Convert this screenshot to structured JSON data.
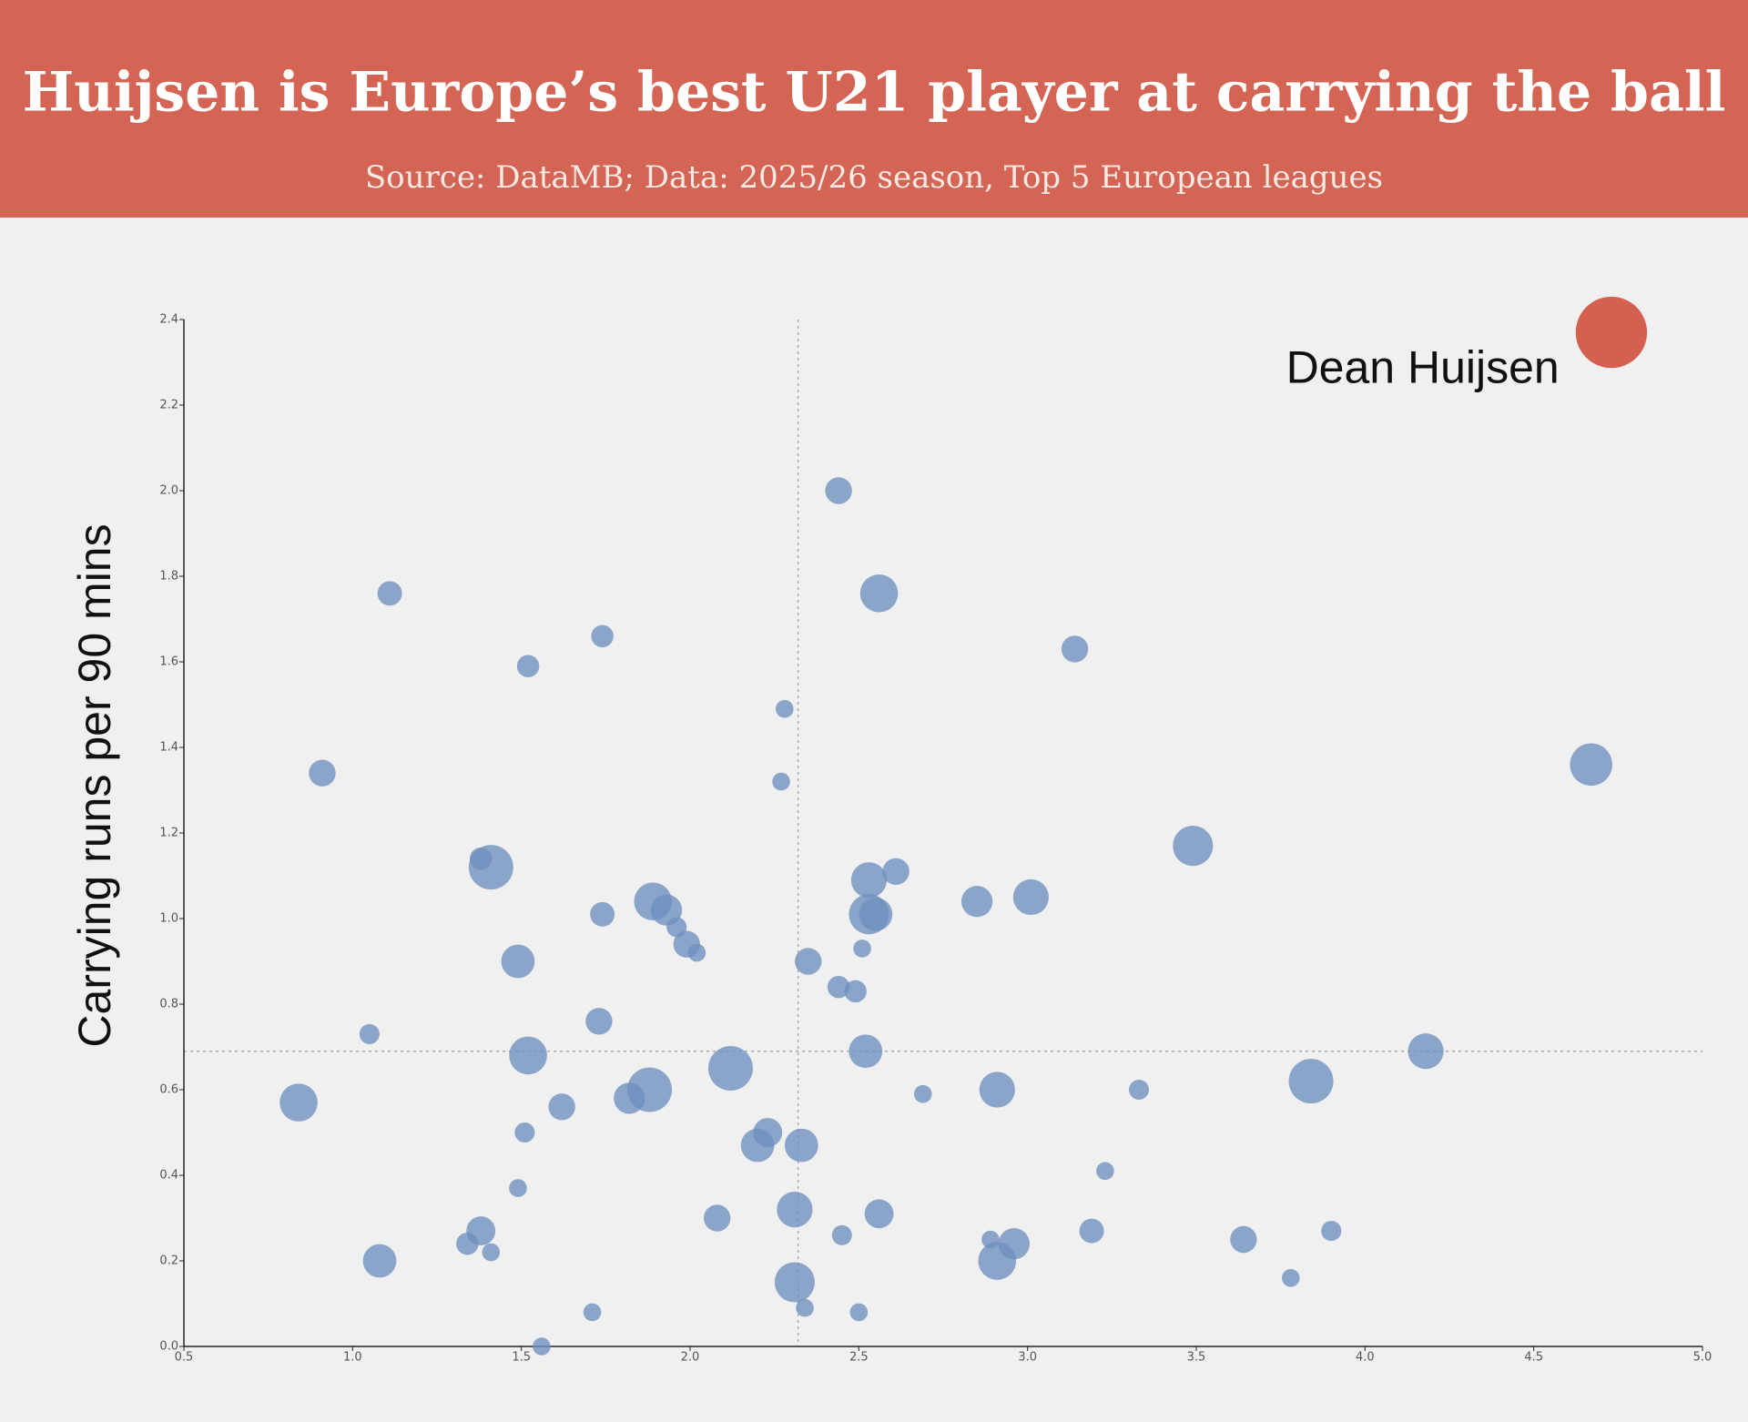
{
  "chart_data": {
    "type": "scatter",
    "title": "Huijsen is Europe’s best U21 player at carrying the ball",
    "subtitle": "Source: DataMB; Data: 2025/26 season, Top 5 European leagues",
    "y_label": "Carrying runs per 90 mins",
    "xlim": [
      0.5,
      5.0
    ],
    "ylim": [
      0.0,
      2.4
    ],
    "xticks": [
      {
        "value": 0.5,
        "label": "0.5"
      },
      {
        "value": 1,
        "label": "1.0"
      },
      {
        "value": 1.5,
        "label": "1.5"
      },
      {
        "value": 2,
        "label": "2.0"
      },
      {
        "value": 2.5,
        "label": "2.5"
      },
      {
        "value": 3,
        "label": "3.0"
      },
      {
        "value": 3.5,
        "label": "3.5"
      },
      {
        "value": 4,
        "label": "4.0"
      },
      {
        "value": 4.5,
        "label": "4.5"
      },
      {
        "value": 5,
        "label": "5.0"
      }
    ],
    "yticks": [
      {
        "value": 0,
        "label": "0.0"
      },
      {
        "value": 0.2,
        "label": "0.2"
      },
      {
        "value": 0.4,
        "label": "0.4"
      },
      {
        "value": 0.6,
        "label": "0.6"
      },
      {
        "value": 0.8,
        "label": "0.8"
      },
      {
        "value": 1,
        "label": "1.0"
      },
      {
        "value": 1.2,
        "label": "1.2"
      },
      {
        "value": 1.4,
        "label": "1.4"
      },
      {
        "value": 1.6,
        "label": "1.6"
      },
      {
        "value": 1.8,
        "label": "1.8"
      },
      {
        "value": 2,
        "label": "2.0"
      },
      {
        "value": 2.2,
        "label": "2.2"
      },
      {
        "value": 2.4,
        "label": "2.4"
      }
    ],
    "reference_lines": {
      "x": 2.32,
      "y": 0.69
    },
    "series": [
      {
        "name": "Dean Huijsen",
        "color": "#d4604f",
        "x": [
          4.73
        ],
        "values": [
          2.37
        ],
        "sizes": [
          32
        ]
      },
      {
        "color": "#6d8ebf",
        "x": [
          2.44,
          2.56,
          1.11,
          1.74,
          1.52,
          3.14,
          2.28,
          2.27,
          0.91,
          4.67,
          3.49,
          1.38,
          1.41,
          2.53,
          2.61,
          2.85,
          3.01,
          1.89,
          1.93,
          1.96,
          1.99,
          2.02,
          1.74,
          2.53,
          2.55,
          2.51,
          1.49,
          2.35,
          2.44,
          2.49,
          1.73,
          1.05,
          1.52,
          2.52,
          4.18,
          2.12,
          1.88,
          1.82,
          2.91,
          3.84,
          2.69,
          3.33,
          0.84,
          1.62,
          1.51,
          2.23,
          2.2,
          2.33,
          3.23,
          1.49,
          2.08,
          2.31,
          2.56,
          1.38,
          1.34,
          1.41,
          2.45,
          2.89,
          2.96,
          2.91,
          3.19,
          3.64,
          3.9,
          3.78,
          1.08,
          2.31,
          2.34,
          2.5,
          1.71,
          1.56
        ],
        "values": [
          2.0,
          1.76,
          1.76,
          1.66,
          1.59,
          1.63,
          1.49,
          1.32,
          1.34,
          1.36,
          1.17,
          1.14,
          1.12,
          1.09,
          1.11,
          1.04,
          1.05,
          1.04,
          1.02,
          0.98,
          0.94,
          0.92,
          1.01,
          1.01,
          1.01,
          0.93,
          0.9,
          0.9,
          0.84,
          0.83,
          0.76,
          0.73,
          0.68,
          0.69,
          0.69,
          0.65,
          0.6,
          0.58,
          0.6,
          0.62,
          0.59,
          0.6,
          0.57,
          0.56,
          0.5,
          0.5,
          0.47,
          0.47,
          0.41,
          0.37,
          0.3,
          0.32,
          0.31,
          0.27,
          0.24,
          0.22,
          0.26,
          0.25,
          0.24,
          0.2,
          0.27,
          0.25,
          0.27,
          0.16,
          0.2,
          0.15,
          0.09,
          0.08,
          0.08,
          0.0
        ],
        "sizes": [
          12,
          17,
          11,
          10,
          10,
          12,
          8,
          8,
          12,
          19,
          18,
          10,
          20,
          16,
          12,
          14,
          16,
          17,
          14,
          9,
          12,
          8,
          11,
          18,
          15,
          8,
          15,
          12,
          10,
          10,
          12,
          9,
          17,
          15,
          16,
          20,
          20,
          14,
          16,
          20,
          8,
          9,
          17,
          12,
          9,
          13,
          15,
          15,
          8,
          8,
          12,
          16,
          13,
          13,
          10,
          8,
          9,
          8,
          14,
          17,
          11,
          12,
          9,
          8,
          15,
          18,
          8,
          8,
          8,
          8
        ]
      }
    ]
  }
}
